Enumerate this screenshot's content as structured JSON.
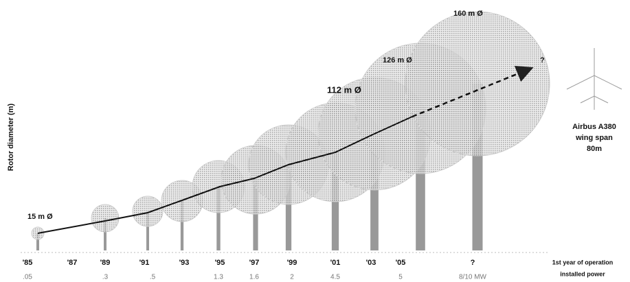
{
  "y_axis_label": "Rotor diameter (m)",
  "years": [
    "'85",
    "'87",
    "'89",
    "'91",
    "'93",
    "'95",
    "'97",
    "'99",
    "'01",
    "'03",
    "'05",
    "?"
  ],
  "powers": [
    ".05",
    ".3",
    ".5",
    "1.3",
    "1.6",
    "2",
    "4.5",
    "5",
    "8/10 MW"
  ],
  "diameter_labels": [
    "15 m Ø",
    "112 m Ø",
    "126 m Ø",
    "160 m Ø"
  ],
  "question_mark": "?",
  "annotation": {
    "lines": [
      "Airbus A380",
      "wing span",
      "80m"
    ]
  },
  "footer": {
    "year_label": "1st year of operation",
    "power_label": "installed power"
  }
}
